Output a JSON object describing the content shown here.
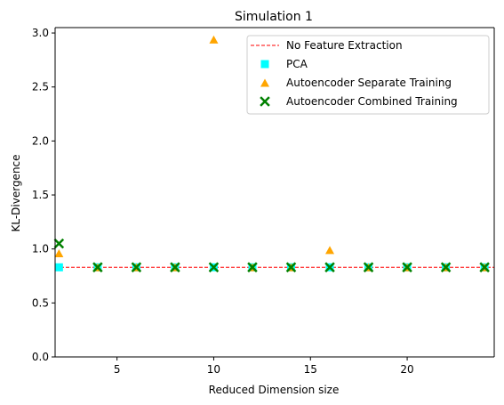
{
  "chart_data": {
    "type": "scatter",
    "title": "Simulation 1",
    "xlabel": "Reduced Dimension size",
    "ylabel": "KL-Divergence",
    "xlim": [
      1.8,
      24.5
    ],
    "ylim": [
      0.0,
      3.05
    ],
    "xticks": [
      5,
      10,
      15,
      20
    ],
    "yticks": [
      0.0,
      0.5,
      1.0,
      1.5,
      2.0,
      2.5,
      3.0
    ],
    "xtick_labels": [
      "5",
      "10",
      "15",
      "20"
    ],
    "ytick_labels": [
      "0.0",
      "0.5",
      "1.0",
      "1.5",
      "2.0",
      "2.5",
      "3.0"
    ],
    "grid": false,
    "legend_position": "top-right",
    "reference_line": {
      "name": "No Feature Extraction",
      "value": 0.83,
      "color": "#ff0000",
      "style": "dashed"
    },
    "series": [
      {
        "name": "PCA",
        "marker": "square",
        "color": "#00ffff",
        "x": [
          2,
          4,
          6,
          8,
          10,
          12,
          14,
          16,
          18,
          20,
          22,
          24
        ],
        "y": [
          0.83,
          0.83,
          0.83,
          0.83,
          0.83,
          0.83,
          0.83,
          0.83,
          0.83,
          0.83,
          0.83,
          0.83
        ]
      },
      {
        "name": "Autoencoder Separate Training",
        "marker": "triangle",
        "color": "#ffa500",
        "x": [
          2,
          4,
          6,
          8,
          10,
          12,
          14,
          16,
          18,
          20,
          22,
          24
        ],
        "y": [
          0.96,
          0.83,
          0.83,
          0.83,
          2.94,
          0.83,
          0.83,
          0.99,
          0.83,
          0.83,
          0.83,
          0.83
        ]
      },
      {
        "name": "Autoencoder Combined Training",
        "marker": "x",
        "color": "#008000",
        "x": [
          2,
          4,
          6,
          8,
          10,
          12,
          14,
          16,
          18,
          20,
          22,
          24
        ],
        "y": [
          1.05,
          0.83,
          0.83,
          0.83,
          0.83,
          0.83,
          0.83,
          0.83,
          0.83,
          0.83,
          0.83,
          0.83
        ]
      }
    ]
  }
}
